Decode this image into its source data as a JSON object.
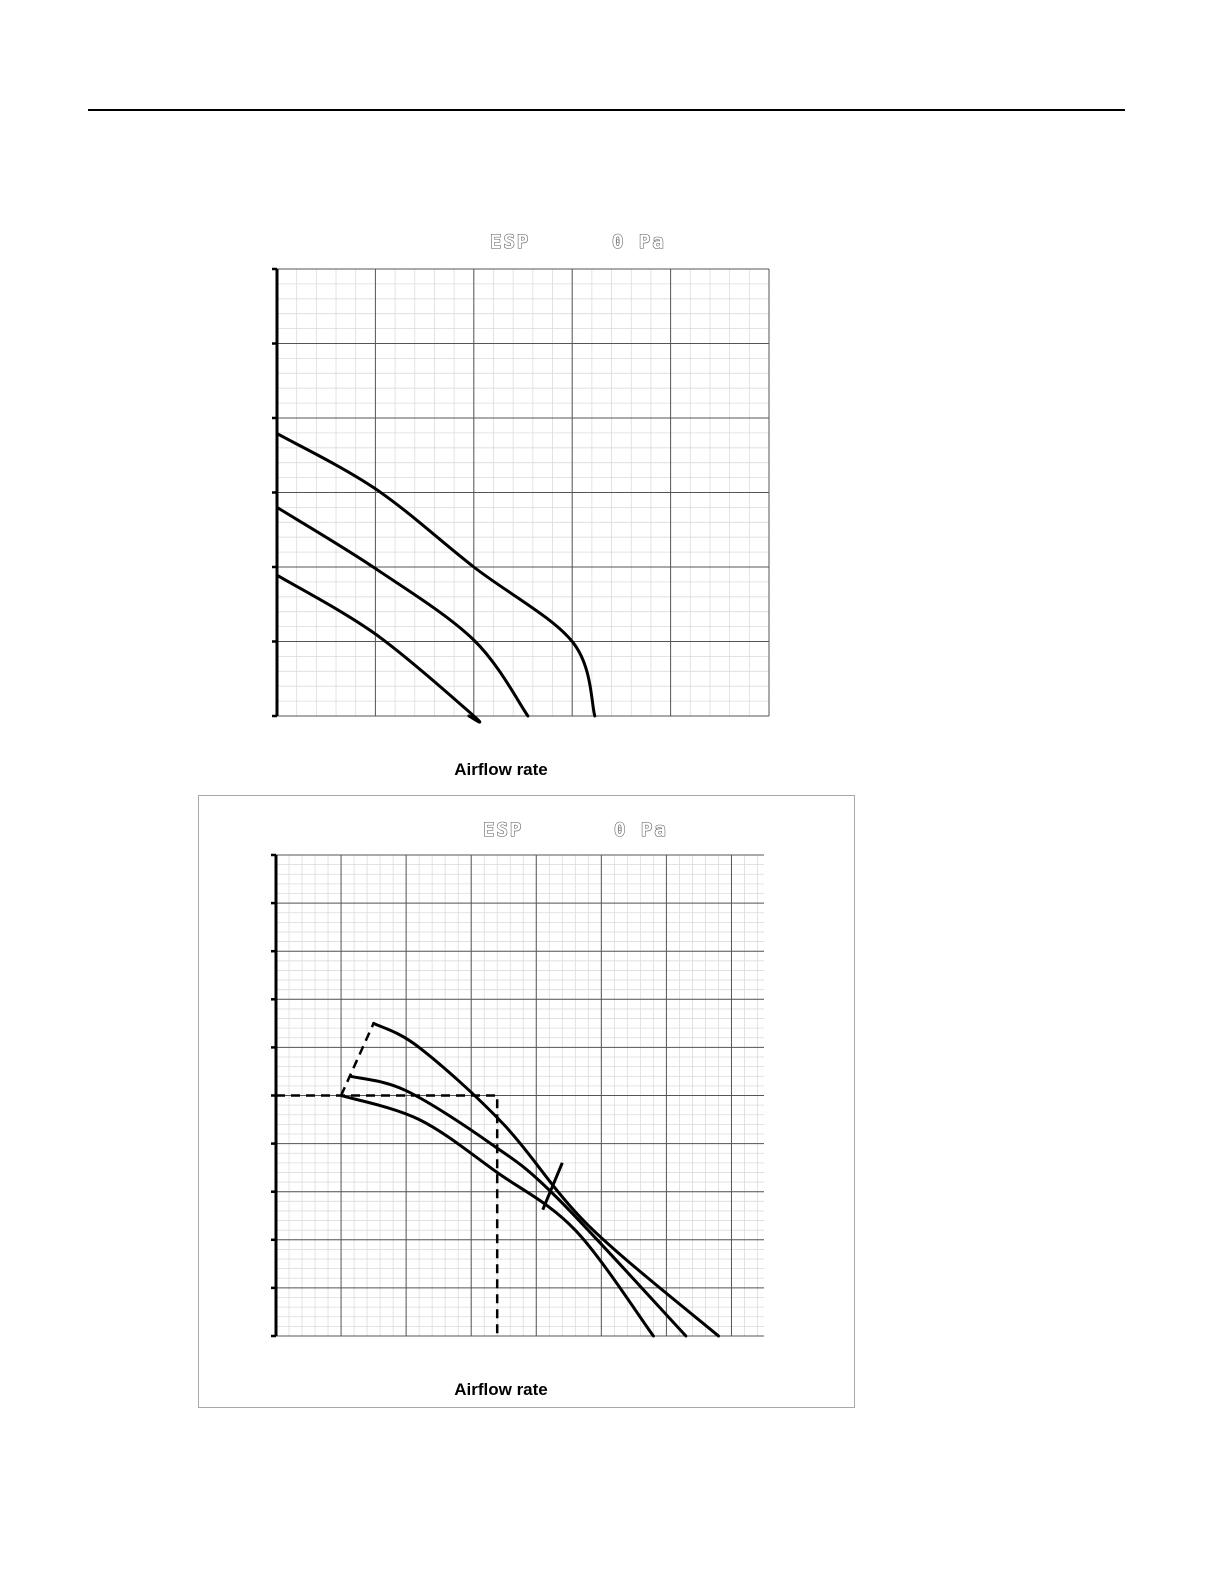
{
  "chart_data": [
    {
      "type": "line",
      "header": {
        "label": "ESP",
        "value": "0 Pa"
      },
      "xlabel": "Airflow rate",
      "ylabel": "",
      "xlim": [
        0,
        5
      ],
      "ylim": [
        0,
        6
      ],
      "grid": true,
      "series": [
        {
          "values": [
            [
              0,
              3.79
            ],
            [
              1,
              3.05
            ],
            [
              2,
              2.0
            ],
            [
              3,
              1.0
            ],
            [
              3.23,
              0
            ]
          ]
        },
        {
          "values": [
            [
              0,
              2.8
            ],
            [
              1,
              1.98
            ],
            [
              2,
              1.02
            ],
            [
              2.55,
              0
            ]
          ]
        },
        {
          "values": [
            [
              0,
              1.89
            ],
            [
              1,
              1.1
            ],
            [
              2,
              0.0
            ],
            [
              1.95,
              0
            ]
          ]
        }
      ]
    },
    {
      "type": "line",
      "header": {
        "label": "ESP",
        "value": "0 Pa"
      },
      "xlabel": "Airflow rate",
      "ylabel": "",
      "xlim": [
        0,
        7.5
      ],
      "ylim": [
        0,
        10
      ],
      "grid": true,
      "series": [
        {
          "values": [
            [
              1.5,
              6.5
            ],
            [
              2.2,
              6.0
            ],
            [
              3.5,
              4.4
            ],
            [
              4.8,
              2.3
            ],
            [
              6.8,
              0
            ]
          ]
        },
        {
          "values": [
            [
              1.15,
              5.4
            ],
            [
              2.0,
              5.1
            ],
            [
              3.3,
              4.0
            ],
            [
              4.3,
              2.9
            ],
            [
              6.3,
              0
            ]
          ]
        },
        {
          "values": [
            [
              1.0,
              5.0
            ],
            [
              2.2,
              4.5
            ],
            [
              3.4,
              3.4
            ],
            [
              4.6,
              2.2
            ],
            [
              5.8,
              0
            ]
          ]
        }
      ],
      "reference_lines": [
        {
          "style": "dashed",
          "points": [
            [
              0,
              5.0
            ],
            [
              3.4,
              5.0
            ],
            [
              3.4,
              0
            ]
          ]
        },
        {
          "style": "dashed",
          "points": [
            [
              1.0,
              5.0
            ],
            [
              1.5,
              6.5
            ]
          ]
        }
      ]
    }
  ]
}
